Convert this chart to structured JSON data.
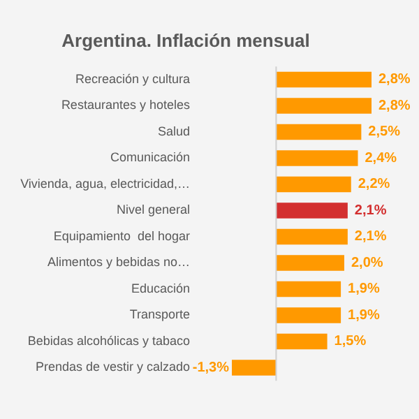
{
  "chart_data": {
    "type": "bar",
    "orientation": "horizontal",
    "title": "Argentina. Inflación mensual",
    "categories": [
      "Recreación y cultura",
      "Restaurantes y hoteles",
      "Salud",
      "Comunicación",
      "Vivienda, agua, electricidad,…",
      "Nivel general",
      "Equipamiento  del hogar",
      "Alimentos y bebidas no…",
      "Educación",
      "Transporte",
      "Bebidas alcohólicas y tabaco",
      "Prendas de vestir y calzado"
    ],
    "values": [
      2.8,
      2.8,
      2.5,
      2.4,
      2.2,
      2.1,
      2.1,
      2.0,
      1.9,
      1.9,
      1.5,
      -1.3
    ],
    "value_labels": [
      "2,8%",
      "2,8%",
      "2,5%",
      "2,4%",
      "2,2%",
      "2,1%",
      "2,1%",
      "2,0%",
      "1,9%",
      "1,9%",
      "1,5%",
      "-1,3%"
    ],
    "colors": [
      "#ff9900",
      "#ff9900",
      "#ff9900",
      "#ff9900",
      "#ff9900",
      "#d32f2f",
      "#ff9900",
      "#ff9900",
      "#ff9900",
      "#ff9900",
      "#ff9900",
      "#ff9900"
    ],
    "xlim": [
      -1.3,
      2.8
    ],
    "tick_labels": "y",
    "grid": false,
    "legend": false
  }
}
